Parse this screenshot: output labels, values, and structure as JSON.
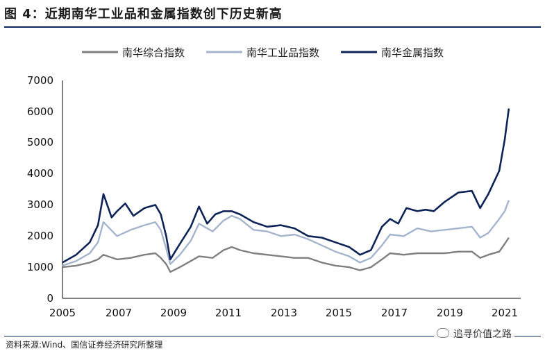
{
  "header": {
    "title": "图 4：近期南华工业品和金属指数创下历史新高"
  },
  "footer": {
    "source": "资料来源:Wind、国信证券经济研究所整理",
    "watermark": "追寻价值之路"
  },
  "chart_data": {
    "type": "line",
    "title": "",
    "xlabel": "",
    "ylabel": "",
    "xlim": [
      2005,
      2021.35
    ],
    "ylim": [
      0,
      7000
    ],
    "xticks": [
      "2005",
      "2007",
      "2009",
      "2011",
      "2013",
      "2015",
      "2017",
      "2019",
      "2021"
    ],
    "yticks": [
      "0",
      "1000",
      "2000",
      "3000",
      "4000",
      "5000",
      "6000",
      "7000"
    ],
    "legend_position": "top",
    "grid": false,
    "series": [
      {
        "name": "南华综合指数",
        "color": "#7f7f7f",
        "x": [
          2005,
          2005.5,
          2006,
          2006.3,
          2006.5,
          2007,
          2007.5,
          2008,
          2008.4,
          2008.6,
          2008.8,
          2008.95,
          2009.3,
          2009.7,
          2010,
          2010.5,
          2010.9,
          2011.2,
          2011.5,
          2012,
          2012.5,
          2013,
          2013.5,
          2014,
          2014.5,
          2015,
          2015.5,
          2015.9,
          2016.3,
          2016.7,
          2017,
          2017.5,
          2018,
          2018.5,
          2019,
          2019.5,
          2020,
          2020.3,
          2020.6,
          2021,
          2021.2,
          2021.35
        ],
        "y": [
          1000,
          1050,
          1150,
          1250,
          1400,
          1250,
          1300,
          1400,
          1450,
          1300,
          1100,
          850,
          1000,
          1200,
          1350,
          1300,
          1550,
          1650,
          1550,
          1450,
          1400,
          1350,
          1300,
          1300,
          1150,
          1050,
          1000,
          900,
          1000,
          1250,
          1450,
          1400,
          1450,
          1450,
          1450,
          1500,
          1500,
          1300,
          1400,
          1500,
          1750,
          1950
        ]
      },
      {
        "name": "南华工业品指数",
        "color": "#a3b4cc",
        "x": [
          2005,
          2005.5,
          2006,
          2006.3,
          2006.5,
          2007,
          2007.5,
          2008,
          2008.4,
          2008.6,
          2008.8,
          2008.95,
          2009.3,
          2009.7,
          2010,
          2010.5,
          2010.9,
          2011.2,
          2011.5,
          2012,
          2012.5,
          2013,
          2013.5,
          2014,
          2014.5,
          2015,
          2015.5,
          2015.9,
          2016.3,
          2016.7,
          2017,
          2017.5,
          2018,
          2018.5,
          2019,
          2019.5,
          2020,
          2020.3,
          2020.6,
          2021,
          2021.2,
          2021.35
        ],
        "y": [
          1050,
          1200,
          1450,
          1800,
          2450,
          2000,
          2200,
          2350,
          2450,
          2200,
          1600,
          1100,
          1400,
          1850,
          2400,
          2150,
          2500,
          2650,
          2550,
          2200,
          2150,
          2000,
          2050,
          1900,
          1700,
          1500,
          1350,
          1150,
          1300,
          1700,
          2050,
          2000,
          2250,
          2150,
          2200,
          2250,
          2300,
          1950,
          2100,
          2550,
          2800,
          3150
        ]
      },
      {
        "name": "南华金属指数",
        "color": "#0d2257",
        "x": [
          2005,
          2005.5,
          2006,
          2006.3,
          2006.5,
          2006.8,
          2007,
          2007.3,
          2007.6,
          2008,
          2008.4,
          2008.6,
          2008.8,
          2008.95,
          2009.3,
          2009.7,
          2010,
          2010.3,
          2010.6,
          2010.9,
          2011.2,
          2011.5,
          2012,
          2012.5,
          2013,
          2013.5,
          2014,
          2014.5,
          2015,
          2015.5,
          2015.9,
          2016.3,
          2016.7,
          2017,
          2017.3,
          2017.6,
          2018,
          2018.3,
          2018.6,
          2019,
          2019.5,
          2020,
          2020.3,
          2020.6,
          2021,
          2021.2,
          2021.35
        ],
        "y": [
          1150,
          1400,
          1800,
          2350,
          3350,
          2600,
          2800,
          3050,
          2650,
          2900,
          3000,
          2700,
          2000,
          1250,
          1750,
          2300,
          2950,
          2400,
          2700,
          2800,
          2800,
          2700,
          2450,
          2300,
          2350,
          2250,
          2000,
          1950,
          1800,
          1650,
          1400,
          1550,
          2300,
          2550,
          2400,
          2900,
          2800,
          2850,
          2800,
          3100,
          3400,
          3450,
          2900,
          3350,
          4100,
          5100,
          6100
        ]
      }
    ]
  }
}
